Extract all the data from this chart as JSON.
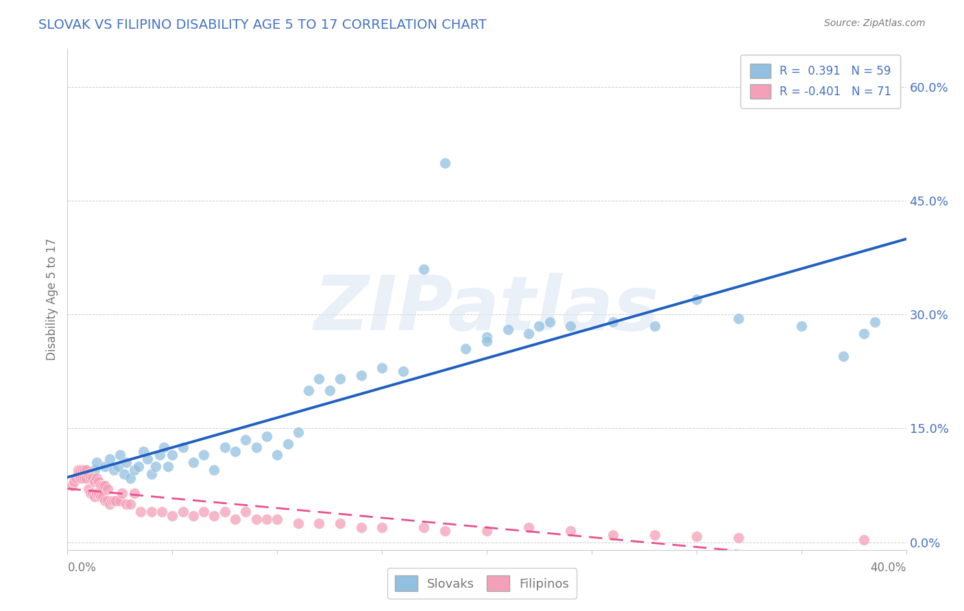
{
  "title": "SLOVAK VS FILIPINO DISABILITY AGE 5 TO 17 CORRELATION CHART",
  "source": "Source: ZipAtlas.com",
  "ylabel": "Disability Age 5 to 17",
  "ytick_vals": [
    0.0,
    0.15,
    0.3,
    0.45,
    0.6
  ],
  "ytick_labels": [
    "0.0%",
    "15.0%",
    "30.0%",
    "45.0%",
    "60.0%"
  ],
  "xlim": [
    0.0,
    0.4
  ],
  "ylim": [
    -0.01,
    0.65
  ],
  "legend_entry1": "R =  0.391   N = 59",
  "legend_entry2": "R = -0.401   N = 71",
  "legend_label1": "Slovaks",
  "legend_label2": "Filipinos",
  "slovak_color": "#92c0e0",
  "filipino_color": "#f4a0b8",
  "slovak_line_color": "#2060c0",
  "filipino_line_color": "#e85090",
  "watermark": "ZIPatlas",
  "blue_text_color": "#4472c4",
  "gray_text_color": "#777777",
  "slovak_x": [
    0.012,
    0.013,
    0.014,
    0.018,
    0.02,
    0.022,
    0.024,
    0.025,
    0.027,
    0.028,
    0.03,
    0.032,
    0.034,
    0.036,
    0.038,
    0.04,
    0.042,
    0.044,
    0.046,
    0.048,
    0.05,
    0.055,
    0.06,
    0.065,
    0.07,
    0.075,
    0.08,
    0.085,
    0.09,
    0.095,
    0.1,
    0.105,
    0.11,
    0.115,
    0.12,
    0.125,
    0.13,
    0.14,
    0.15,
    0.16,
    0.17,
    0.18,
    0.19,
    0.2,
    0.2,
    0.21,
    0.22,
    0.225,
    0.23,
    0.24,
    0.26,
    0.28,
    0.3,
    0.32,
    0.35,
    0.37,
    0.375,
    0.38,
    0.385
  ],
  "slovak_y": [
    0.085,
    0.095,
    0.105,
    0.1,
    0.11,
    0.095,
    0.1,
    0.115,
    0.09,
    0.105,
    0.085,
    0.095,
    0.1,
    0.12,
    0.11,
    0.09,
    0.1,
    0.115,
    0.125,
    0.1,
    0.115,
    0.125,
    0.105,
    0.115,
    0.095,
    0.125,
    0.12,
    0.135,
    0.125,
    0.14,
    0.115,
    0.13,
    0.145,
    0.2,
    0.215,
    0.2,
    0.215,
    0.22,
    0.23,
    0.225,
    0.36,
    0.5,
    0.255,
    0.27,
    0.265,
    0.28,
    0.275,
    0.285,
    0.29,
    0.285,
    0.29,
    0.285,
    0.32,
    0.295,
    0.285,
    0.245,
    0.58,
    0.275,
    0.29
  ],
  "filipino_x": [
    0.002,
    0.003,
    0.004,
    0.005,
    0.005,
    0.006,
    0.006,
    0.007,
    0.007,
    0.008,
    0.008,
    0.009,
    0.009,
    0.01,
    0.01,
    0.011,
    0.011,
    0.012,
    0.012,
    0.013,
    0.013,
    0.014,
    0.014,
    0.015,
    0.015,
    0.016,
    0.016,
    0.017,
    0.017,
    0.018,
    0.018,
    0.019,
    0.019,
    0.02,
    0.021,
    0.022,
    0.023,
    0.025,
    0.026,
    0.028,
    0.03,
    0.032,
    0.035,
    0.04,
    0.045,
    0.05,
    0.055,
    0.06,
    0.065,
    0.07,
    0.075,
    0.08,
    0.085,
    0.09,
    0.095,
    0.1,
    0.11,
    0.12,
    0.13,
    0.14,
    0.15,
    0.17,
    0.18,
    0.2,
    0.22,
    0.24,
    0.26,
    0.28,
    0.3,
    0.32,
    0.38
  ],
  "filipino_y": [
    0.075,
    0.08,
    0.085,
    0.09,
    0.095,
    0.085,
    0.095,
    0.085,
    0.095,
    0.085,
    0.095,
    0.085,
    0.095,
    0.07,
    0.09,
    0.065,
    0.085,
    0.065,
    0.085,
    0.06,
    0.08,
    0.065,
    0.085,
    0.065,
    0.08,
    0.06,
    0.075,
    0.06,
    0.075,
    0.055,
    0.075,
    0.055,
    0.07,
    0.05,
    0.055,
    0.055,
    0.055,
    0.055,
    0.065,
    0.05,
    0.05,
    0.065,
    0.04,
    0.04,
    0.04,
    0.035,
    0.04,
    0.035,
    0.04,
    0.035,
    0.04,
    0.03,
    0.04,
    0.03,
    0.03,
    0.03,
    0.025,
    0.025,
    0.025,
    0.02,
    0.02,
    0.02,
    0.015,
    0.015,
    0.02,
    0.015,
    0.01,
    0.01,
    0.008,
    0.006,
    0.003
  ]
}
